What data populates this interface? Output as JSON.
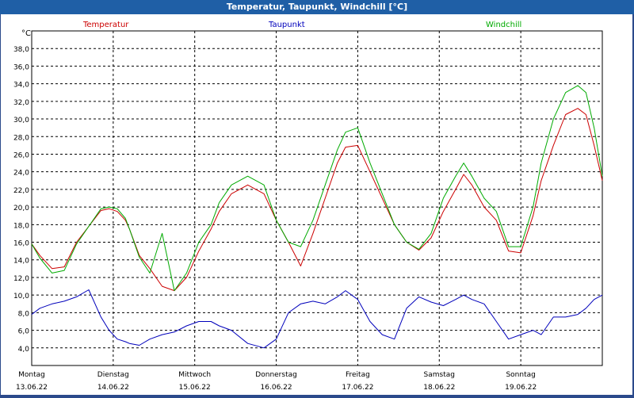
{
  "window": {
    "title": "Temperatur, Taupunkt, Windchill [°C]"
  },
  "colors": {
    "temperatur": "#cc0000",
    "taupunkt": "#0000bb",
    "windchill": "#00aa00",
    "title_bg": "#1f5fa6"
  },
  "chart_data": {
    "type": "line",
    "title": "Temperatur, Taupunkt, Windchill [°C]",
    "ylabel": "°C",
    "xlabel": "",
    "ylim": [
      2.0,
      40.0
    ],
    "xlim": [
      0,
      7
    ],
    "grid": true,
    "yticks": [
      "38,0",
      "36,0",
      "34,0",
      "32,0",
      "30,0",
      "28,0",
      "26,0",
      "24,0",
      "22,0",
      "20,0",
      "18,0",
      "16,0",
      "14,0",
      "12,0",
      "10,0",
      "8,0",
      "6,0",
      "4,0"
    ],
    "ytick_values": [
      38,
      36,
      34,
      32,
      30,
      28,
      26,
      24,
      22,
      20,
      18,
      16,
      14,
      12,
      10,
      8,
      6,
      4
    ],
    "categories": [
      {
        "day": "Montag",
        "date": "13.06.22"
      },
      {
        "day": "Dienstag",
        "date": "14.06.22"
      },
      {
        "day": "Mittwoch",
        "date": "15.06.22"
      },
      {
        "day": "Donnerstag",
        "date": "16.06.22"
      },
      {
        "day": "Freitag",
        "date": "17.06.22"
      },
      {
        "day": "Samstag",
        "date": "18.06.22"
      },
      {
        "day": "Sonntag",
        "date": "19.06.22"
      }
    ],
    "legend": [
      "Temperatur",
      "Taupunkt",
      "Windchill"
    ],
    "series": [
      {
        "name": "Temperatur",
        "x": [
          0.0,
          0.1,
          0.25,
          0.4,
          0.55,
          0.7,
          0.85,
          0.95,
          1.05,
          1.15,
          1.2,
          1.32,
          1.45,
          1.6,
          1.75,
          1.9,
          2.05,
          2.2,
          2.3,
          2.45,
          2.65,
          2.85,
          3.0,
          3.15,
          3.3,
          3.45,
          3.6,
          3.75,
          3.85,
          4.0,
          4.15,
          4.3,
          4.45,
          4.6,
          4.75,
          4.9,
          5.05,
          5.2,
          5.3,
          5.4,
          5.55,
          5.7,
          5.85,
          6.0,
          6.15,
          6.25,
          6.4,
          6.55,
          6.7,
          6.8,
          6.9,
          7.0
        ],
        "values": [
          15.8,
          14.5,
          13.0,
          13.2,
          16.0,
          17.8,
          19.6,
          19.8,
          19.5,
          18.5,
          17.5,
          14.5,
          13.0,
          11.0,
          10.5,
          12.0,
          15.0,
          17.5,
          19.5,
          21.5,
          22.5,
          21.5,
          18.5,
          16.0,
          13.3,
          17.0,
          21.0,
          25.0,
          26.8,
          27.0,
          24.0,
          21.0,
          18.0,
          16.0,
          15.1,
          16.5,
          19.5,
          22.0,
          23.7,
          22.5,
          20.0,
          18.5,
          15.0,
          14.8,
          19.0,
          23.0,
          27.0,
          30.5,
          31.2,
          30.5,
          27.0,
          23.0
        ]
      },
      {
        "name": "Windchill",
        "x": [
          0.0,
          0.1,
          0.25,
          0.4,
          0.55,
          0.7,
          0.85,
          0.95,
          1.05,
          1.15,
          1.2,
          1.32,
          1.45,
          1.6,
          1.75,
          1.9,
          2.05,
          2.2,
          2.3,
          2.45,
          2.65,
          2.85,
          3.0,
          3.15,
          3.3,
          3.45,
          3.6,
          3.75,
          3.85,
          4.0,
          4.15,
          4.3,
          4.45,
          4.6,
          4.75,
          4.9,
          5.05,
          5.2,
          5.3,
          5.4,
          5.55,
          5.7,
          5.85,
          6.0,
          6.15,
          6.25,
          6.4,
          6.55,
          6.7,
          6.8,
          6.9,
          7.0
        ],
        "values": [
          15.8,
          14.2,
          12.5,
          12.8,
          15.8,
          17.8,
          19.8,
          20.0,
          19.8,
          18.7,
          17.5,
          14.3,
          12.5,
          17.0,
          10.5,
          12.5,
          16.0,
          18.0,
          20.5,
          22.5,
          23.5,
          22.5,
          18.5,
          16.0,
          15.5,
          18.5,
          22.5,
          26.5,
          28.5,
          29.0,
          25.0,
          21.5,
          18.0,
          16.0,
          15.2,
          17.0,
          21.0,
          23.5,
          25.0,
          23.5,
          21.0,
          19.5,
          15.5,
          15.5,
          20.0,
          25.0,
          30.0,
          33.0,
          33.8,
          33.0,
          29.0,
          23.5
        ]
      },
      {
        "name": "Taupunkt",
        "x": [
          0.0,
          0.1,
          0.25,
          0.4,
          0.55,
          0.7,
          0.85,
          0.95,
          1.05,
          1.15,
          1.2,
          1.32,
          1.45,
          1.6,
          1.75,
          1.9,
          2.05,
          2.2,
          2.3,
          2.45,
          2.65,
          2.85,
          3.0,
          3.15,
          3.3,
          3.45,
          3.6,
          3.75,
          3.85,
          4.0,
          4.15,
          4.3,
          4.45,
          4.6,
          4.75,
          4.9,
          5.05,
          5.2,
          5.3,
          5.4,
          5.55,
          5.7,
          5.85,
          6.0,
          6.15,
          6.25,
          6.4,
          6.55,
          6.7,
          6.8,
          6.9,
          7.0
        ],
        "values": [
          7.8,
          8.5,
          9.0,
          9.3,
          9.8,
          10.6,
          7.5,
          6.0,
          5.0,
          4.7,
          4.5,
          4.3,
          5.0,
          5.5,
          5.8,
          6.5,
          7.0,
          7.0,
          6.5,
          6.0,
          4.5,
          4.0,
          5.0,
          8.0,
          9.0,
          9.3,
          9.0,
          9.8,
          10.5,
          9.5,
          7.0,
          5.5,
          5.0,
          8.5,
          9.8,
          9.2,
          8.8,
          9.5,
          10.0,
          9.5,
          9.0,
          7.0,
          5.0,
          5.5,
          6.0,
          5.5,
          7.5,
          7.5,
          7.8,
          8.5,
          9.5,
          10.0
        ]
      }
    ]
  }
}
